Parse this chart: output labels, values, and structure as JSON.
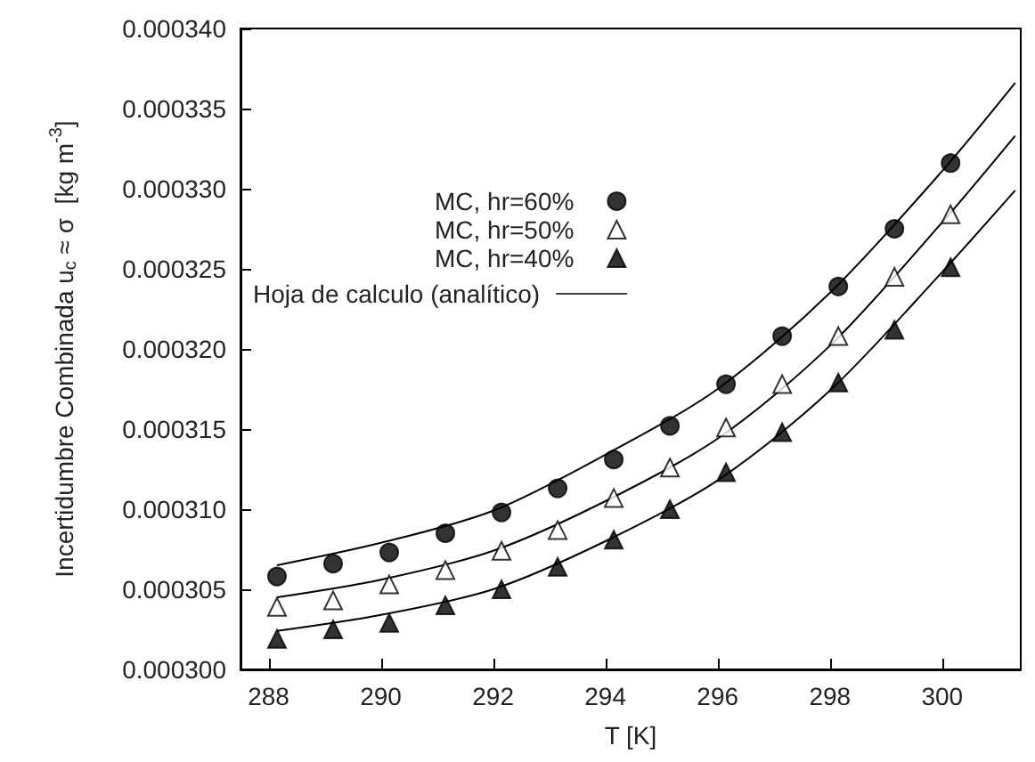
{
  "chart_data": {
    "type": "scatter",
    "xlabel": "T [K]",
    "ylabel": "Incertidumbre Combinada u$_{c}$ ≈ σ  [kg m$^{-3}$]",
    "xlim": [
      287.5,
      301.4
    ],
    "xticks": [
      288,
      290,
      292,
      294,
      296,
      298,
      300
    ],
    "ylim": [
      0.0003,
      0.00034
    ],
    "yticks": [
      {
        "value": 0.0003,
        "label": "0.000300"
      },
      {
        "value": 0.000305,
        "label": "0.000305"
      },
      {
        "value": 0.00031,
        "label": "0.000310"
      },
      {
        "value": 0.000315,
        "label": "0.000315"
      },
      {
        "value": 0.00032,
        "label": "0.000320"
      },
      {
        "value": 0.000325,
        "label": "0.000325"
      },
      {
        "value": 0.00033,
        "label": "0.000330"
      },
      {
        "value": 0.000335,
        "label": "0.000335"
      },
      {
        "value": 0.00034,
        "label": "0.000340"
      }
    ],
    "grid": false,
    "legend": "top left",
    "series": [
      {
        "name": "MC, hr=60%",
        "marker": "circle",
        "color": "#000000",
        "x": [
          288.15,
          289.15,
          290.15,
          291.15,
          292.15,
          293.15,
          294.15,
          295.15,
          296.15,
          297.15,
          298.15,
          299.15,
          300.15
        ],
        "values": [
          0.0003058,
          0.0003066,
          0.0003073,
          0.0003085,
          0.0003098,
          0.0003113,
          0.0003131,
          0.0003152,
          0.0003178,
          0.0003208,
          0.0003239,
          0.0003275,
          0.0003316
        ]
      },
      {
        "name": "MC, hr=50%",
        "marker": "triangle",
        "color": "#ffffff",
        "x": [
          288.15,
          289.15,
          290.15,
          291.15,
          292.15,
          293.15,
          294.15,
          295.15,
          296.15,
          297.15,
          298.15,
          299.15,
          300.15
        ],
        "values": [
          0.0003039,
          0.0003043,
          0.0003053,
          0.0003062,
          0.0003074,
          0.0003087,
          0.0003107,
          0.0003126,
          0.0003151,
          0.0003178,
          0.0003208,
          0.0003245,
          0.0003284
        ]
      },
      {
        "name": "MC, hr=40%",
        "marker": "triangle",
        "color": "#000000",
        "x": [
          288.15,
          289.15,
          290.15,
          291.15,
          292.15,
          293.15,
          294.15,
          295.15,
          296.15,
          297.15,
          298.15,
          299.15,
          300.15
        ],
        "values": [
          0.0003019,
          0.0003025,
          0.0003029,
          0.000304,
          0.000305,
          0.0003064,
          0.0003081,
          0.00031,
          0.0003123,
          0.0003148,
          0.0003179,
          0.0003212,
          0.0003251
        ]
      },
      {
        "name": "Hoja de calculo (analítico)",
        "type": "line",
        "marker": "none",
        "line_style": "solid",
        "color": "#000000",
        "x": [
          288.15,
          290,
          292,
          294,
          296,
          298,
          300,
          301.3
        ],
        "values": [
          0.0003065,
          0.0003079,
          0.0003099,
          0.0003134,
          0.0003175,
          0.0003235,
          0.0003311,
          0.0003366
        ]
      },
      {
        "type": "line",
        "marker": "none",
        "line_style": "solid",
        "color": "#000000",
        "x": [
          288.15,
          290,
          292,
          294,
          296,
          298,
          300,
          301.3
        ],
        "values": [
          0.0003045,
          0.0003056,
          0.0003074,
          0.0003105,
          0.0003144,
          0.0003202,
          0.0003279,
          0.0003333
        ]
      },
      {
        "type": "line",
        "marker": "none",
        "line_style": "solid",
        "color": "#000000",
        "x": [
          288.15,
          290,
          292,
          294,
          296,
          298,
          300,
          301.3
        ],
        "values": [
          0.0003024,
          0.0003034,
          0.000305,
          0.000308,
          0.0003118,
          0.0003174,
          0.0003248,
          0.0003299
        ]
      }
    ]
  }
}
